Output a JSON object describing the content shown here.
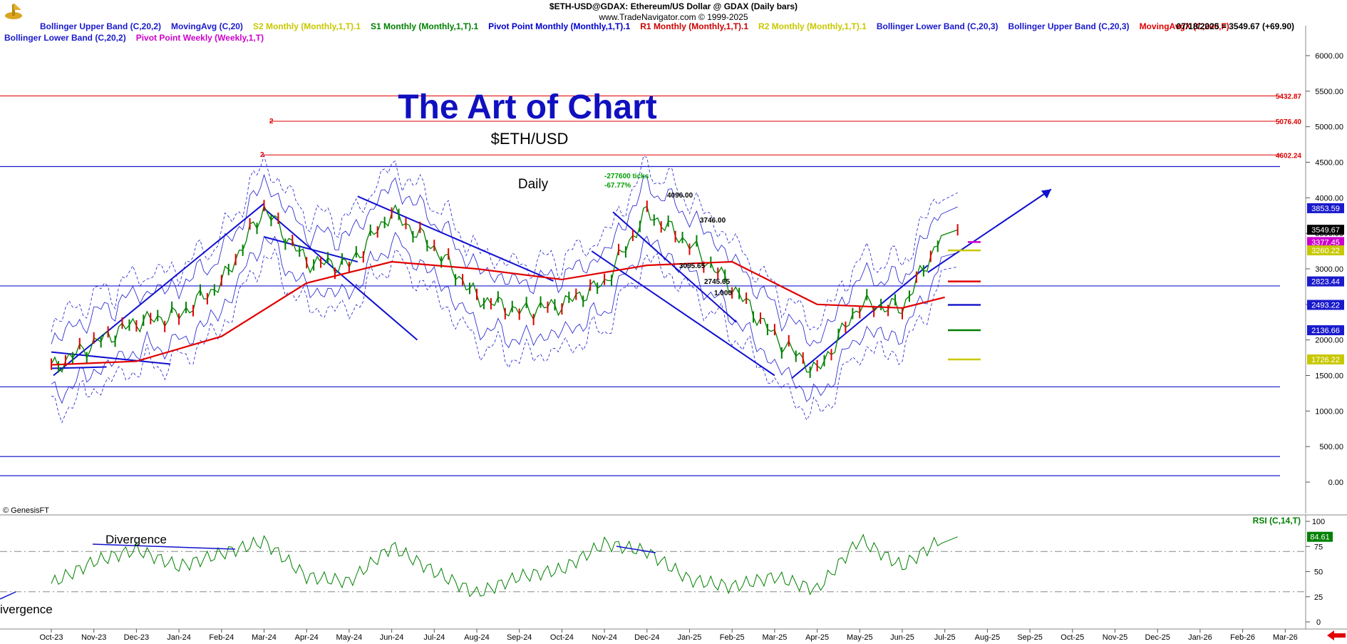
{
  "header": {
    "symbol_line": "$ETH-USD@GDAX:  Ethereum/US Dollar @ GDAX  (Daily bars)",
    "copyright_line": "www.TradeNavigator.com © 1999-2025",
    "date_readout": "07/18/2025 = 3549.67 (+69.90)",
    "genesis": "© GenesisFT"
  },
  "legend": {
    "row1": [
      {
        "label": "Bollinger Upper Band (C,20,2)",
        "color": "#1a1acc"
      },
      {
        "label": "MovingAvg (C,20)",
        "color": "#1a1acc"
      },
      {
        "label": "S2 Monthly (Monthly,1,T).1",
        "color": "#c8c800"
      },
      {
        "label": "S1 Monthly (Monthly,1,T).1",
        "color": "#008000"
      },
      {
        "label": "Pivot Point Monthly (Monthly,1,T).1",
        "color": "#0000cc"
      },
      {
        "label": "R1 Monthly (Monthly,1,T).1",
        "color": "#cc0000"
      },
      {
        "label": "R2 Monthly (Monthly,1,T).1",
        "color": "#c8c800"
      },
      {
        "label": "Bollinger Lower Band (C,20,3)",
        "color": "#1a1acc"
      },
      {
        "label": "Bollinger Upper Band (C,20,3)",
        "color": "#1a1acc"
      },
      {
        "label": "MovingAvgX (C,200,F)",
        "color": "#e00000"
      }
    ],
    "row2": [
      {
        "label": "Bollinger Lower Band (C,20,2)",
        "color": "#1a1acc"
      },
      {
        "label": "Pivot Point Weekly (Weekly,1,T)",
        "color": "#cc00cc"
      }
    ]
  },
  "chart_data": {
    "type": "line",
    "title": "The Art of Chart",
    "subtitle": "$ETH/USD",
    "timeframe_label": "Daily",
    "ylim": [
      -200,
      6400
    ],
    "y_ticks": [
      "6000.00",
      "5500.00",
      "5000.00",
      "4500.00",
      "4000.00",
      "3500.00",
      "3000.00",
      "2500.00",
      "2000.00",
      "1500.00",
      "1000.00",
      "500.00",
      "0.00"
    ],
    "x_ticks": [
      "Oct-23",
      "Nov-23",
      "Dec-23",
      "Jan-24",
      "Feb-24",
      "Mar-24",
      "Apr-24",
      "May-24",
      "Jun-24",
      "Jul-24",
      "Aug-24",
      "Sep-24",
      "Oct-24",
      "Nov-24",
      "Dec-24",
      "Jan-25",
      "Feb-25",
      "Mar-25",
      "Apr-25",
      "May-25",
      "Jun-25",
      "Jul-25",
      "Aug-25",
      "Sep-25",
      "Oct-25",
      "Nov-25",
      "Dec-25",
      "Jan-26",
      "Feb-26",
      "Mar-26"
    ],
    "series": [
      {
        "name": "$ETH-USD@GDAX",
        "color": "#008000",
        "x": [
          "Oct-23",
          "Nov-23",
          "Dec-23",
          "Jan-24",
          "Feb-24",
          "Mar-24",
          "Apr-24",
          "May-24",
          "Jun-24",
          "Jul-24",
          "Aug-24",
          "Sep-24",
          "Oct-24",
          "Nov-24",
          "Dec-24",
          "Jan-25",
          "Feb-25",
          "Mar-25",
          "Apr-25",
          "May-25",
          "Jun-25",
          "Jul-25"
        ],
        "values": [
          1600,
          1950,
          2250,
          2350,
          2800,
          3850,
          3100,
          3050,
          3800,
          3300,
          2600,
          2400,
          2500,
          2800,
          3800,
          3350,
          2750,
          2050,
          1550,
          2500,
          2450,
          3549.67
        ]
      },
      {
        "name": "MovingAvgX (C,200,F)",
        "color": "#e00000",
        "x": [
          "Oct-23",
          "Dec-23",
          "Feb-24",
          "Apr-24",
          "Jun-24",
          "Aug-24",
          "Oct-24",
          "Dec-24",
          "Feb-25",
          "Apr-25",
          "Jun-25",
          "Jul-25"
        ],
        "values": [
          1650,
          1700,
          2050,
          2800,
          3100,
          3000,
          2850,
          3050,
          3100,
          2500,
          2450,
          2600
        ]
      }
    ],
    "price_labels": [
      {
        "text": "5432.87",
        "value": 5432.87,
        "color": "#e00000"
      },
      {
        "text": "5076.40",
        "value": 5076.4,
        "color": "#e00000"
      },
      {
        "text": "4602.24",
        "value": 4602.24,
        "color": "#e00000"
      },
      {
        "text": "3853.59",
        "value": 3853.59,
        "color": "#1a1acc"
      },
      {
        "text": "3549.67",
        "value": 3549.67,
        "color": "#000000"
      },
      {
        "text": "3377.45",
        "value": 3377.45,
        "color": "#cc00cc"
      },
      {
        "text": "3260.22",
        "value": 3260.22,
        "color": "#c8c800"
      },
      {
        "text": "2823.44",
        "value": 2823.44,
        "color": "#1a1acc"
      },
      {
        "text": "2493.22",
        "value": 2493.22,
        "color": "#1a1acc"
      },
      {
        "text": "2136.66",
        "value": 2136.66,
        "color": "#1a1acc"
      },
      {
        "text": "1726.22",
        "value": 1726.22,
        "color": "#c8c800"
      }
    ],
    "annotations": [
      {
        "text": "-277600 ticks",
        "color": "#00a000"
      },
      {
        "text": "-67.77%",
        "color": "#00a000"
      },
      {
        "text": "4096.00",
        "color": "#000000"
      },
      {
        "text": "3746.00",
        "color": "#000000"
      },
      {
        "text": "3095.65",
        "color": "#000000"
      },
      {
        "text": "2745.65",
        "color": "#000000"
      },
      {
        "text": "1.000",
        "color": "#000000"
      },
      {
        "text": "2",
        "color": "#e00000"
      },
      {
        "text": "2",
        "color": "#e00000"
      }
    ],
    "rsi": {
      "label": "RSI (C,14,T)",
      "ylim": [
        0,
        100
      ],
      "y_ticks": [
        "100",
        "75",
        "50",
        "25",
        "0"
      ],
      "last_value": "84.61",
      "values": [
        38,
        60,
        72,
        55,
        68,
        80,
        45,
        40,
        75,
        50,
        28,
        45,
        52,
        78,
        70,
        42,
        35,
        45,
        32,
        82,
        55,
        84.61
      ],
      "divergence_labels": [
        "Divergence",
        "ivergence"
      ]
    }
  }
}
